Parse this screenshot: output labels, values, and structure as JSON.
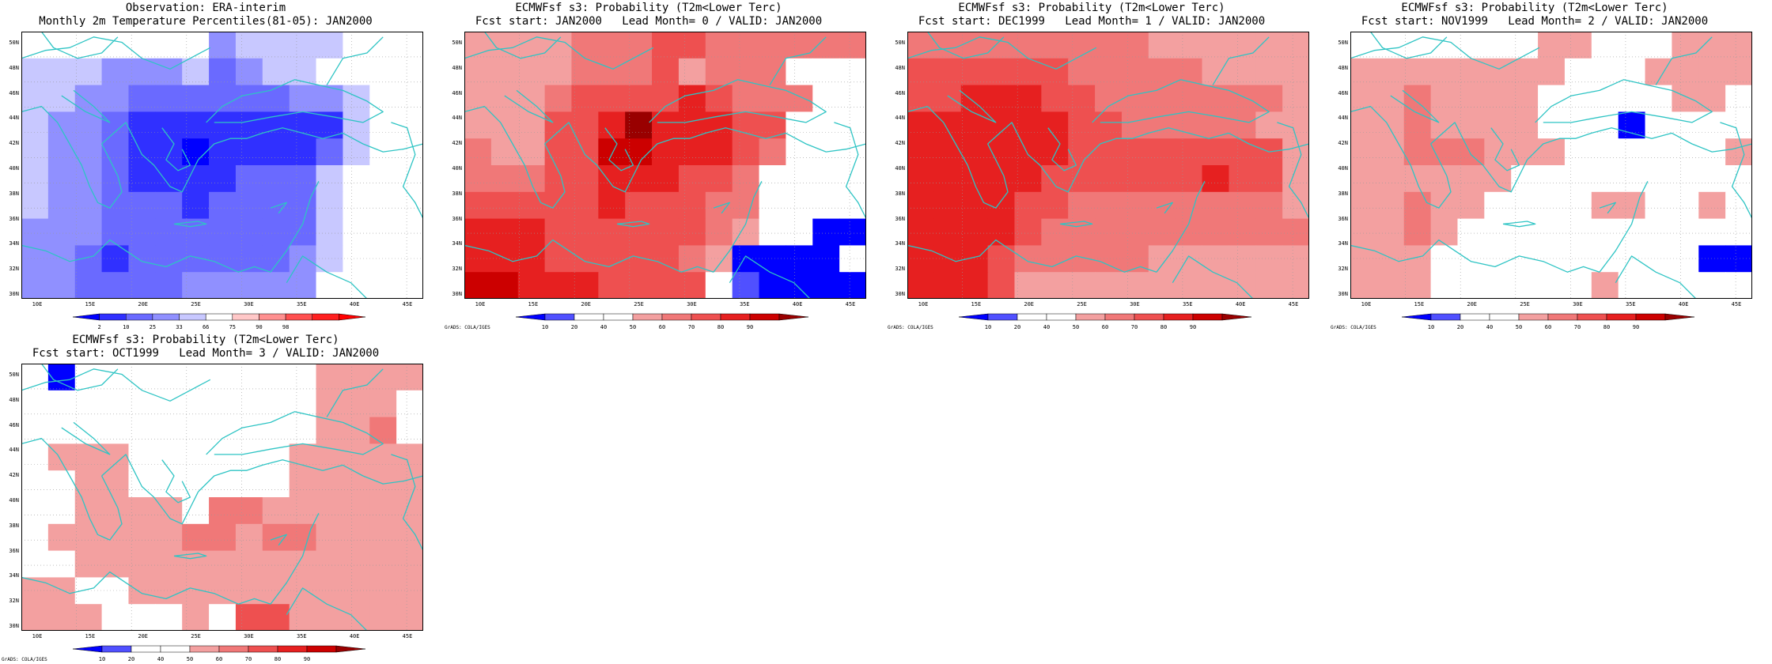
{
  "figure": {
    "panels": [
      {
        "id": "obs",
        "title_line1": "Observation: ERA-interim",
        "title_line2": "Monthly 2m Temperature Percentiles(81-05): JAN2000",
        "kind": "obs",
        "colorbar_labels": [
          "2",
          "10",
          "25",
          "33",
          "66",
          "75",
          "90",
          "98"
        ],
        "show_grads_credit": false
      },
      {
        "id": "lead0",
        "title_line1": "ECMWFsf s3: Probability (T2m<Lower Terc)",
        "title_line2": "Fcst start: JAN2000   Lead Month= 0 / VALID: JAN2000",
        "kind": "fcst",
        "colorbar_labels": [
          "10",
          "20",
          "40",
          "50",
          "60",
          "70",
          "80",
          "90"
        ],
        "show_grads_credit": true
      },
      {
        "id": "lead1",
        "title_line1": "ECMWFsf s3: Probability (T2m<Lower Terc)",
        "title_line2": "Fcst start: DEC1999   Lead Month= 1 / VALID: JAN2000",
        "kind": "fcst",
        "colorbar_labels": [
          "10",
          "20",
          "40",
          "50",
          "60",
          "70",
          "80",
          "90"
        ],
        "show_grads_credit": true
      },
      {
        "id": "lead2",
        "title_line1": "ECMWFsf s3: Probability (T2m<Lower Terc)",
        "title_line2": "Fcst start: NOV1999   Lead Month= 2 / VALID: JAN2000",
        "kind": "fcst",
        "colorbar_labels": [
          "10",
          "20",
          "40",
          "50",
          "60",
          "70",
          "80",
          "90"
        ],
        "show_grads_credit": true
      },
      {
        "id": "lead3",
        "title_line1": "ECMWFsf s3: Probability (T2m<Lower Terc)",
        "title_line2": "Fcst start: OCT1999   Lead Month= 3 / VALID: JAN2000",
        "kind": "fcst",
        "colorbar_labels": [
          "10",
          "20",
          "40",
          "50",
          "60",
          "70",
          "80",
          "90"
        ],
        "show_grads_credit": true
      }
    ],
    "lat_labels": [
      "50N",
      "48N",
      "46N",
      "44N",
      "42N",
      "40N",
      "38N",
      "36N",
      "34N",
      "32N",
      "30N"
    ],
    "lon_labels": [
      "10E",
      "15E",
      "20E",
      "25E",
      "30E",
      "35E",
      "40E",
      "45E"
    ],
    "grads_credit": "GrADS: COLA/IGES",
    "colors": {
      "coastline": "#2ec4c4",
      "obs_scale": [
        "#0000ff",
        "#3030ff",
        "#6a6aff",
        "#9090ff",
        "#c8c8ff",
        "#ffffff",
        "#ffc8c8",
        "#ff9090",
        "#ff5050",
        "#ff2020",
        "#ff0000"
      ],
      "fcst_scale": [
        "#0000ff",
        "#5050ff",
        "#ffffff",
        "#ffffff",
        "#f3a0a0",
        "#f07878",
        "#ee5050",
        "#e62020",
        "#cc0000",
        "#990000"
      ]
    }
  }
}
